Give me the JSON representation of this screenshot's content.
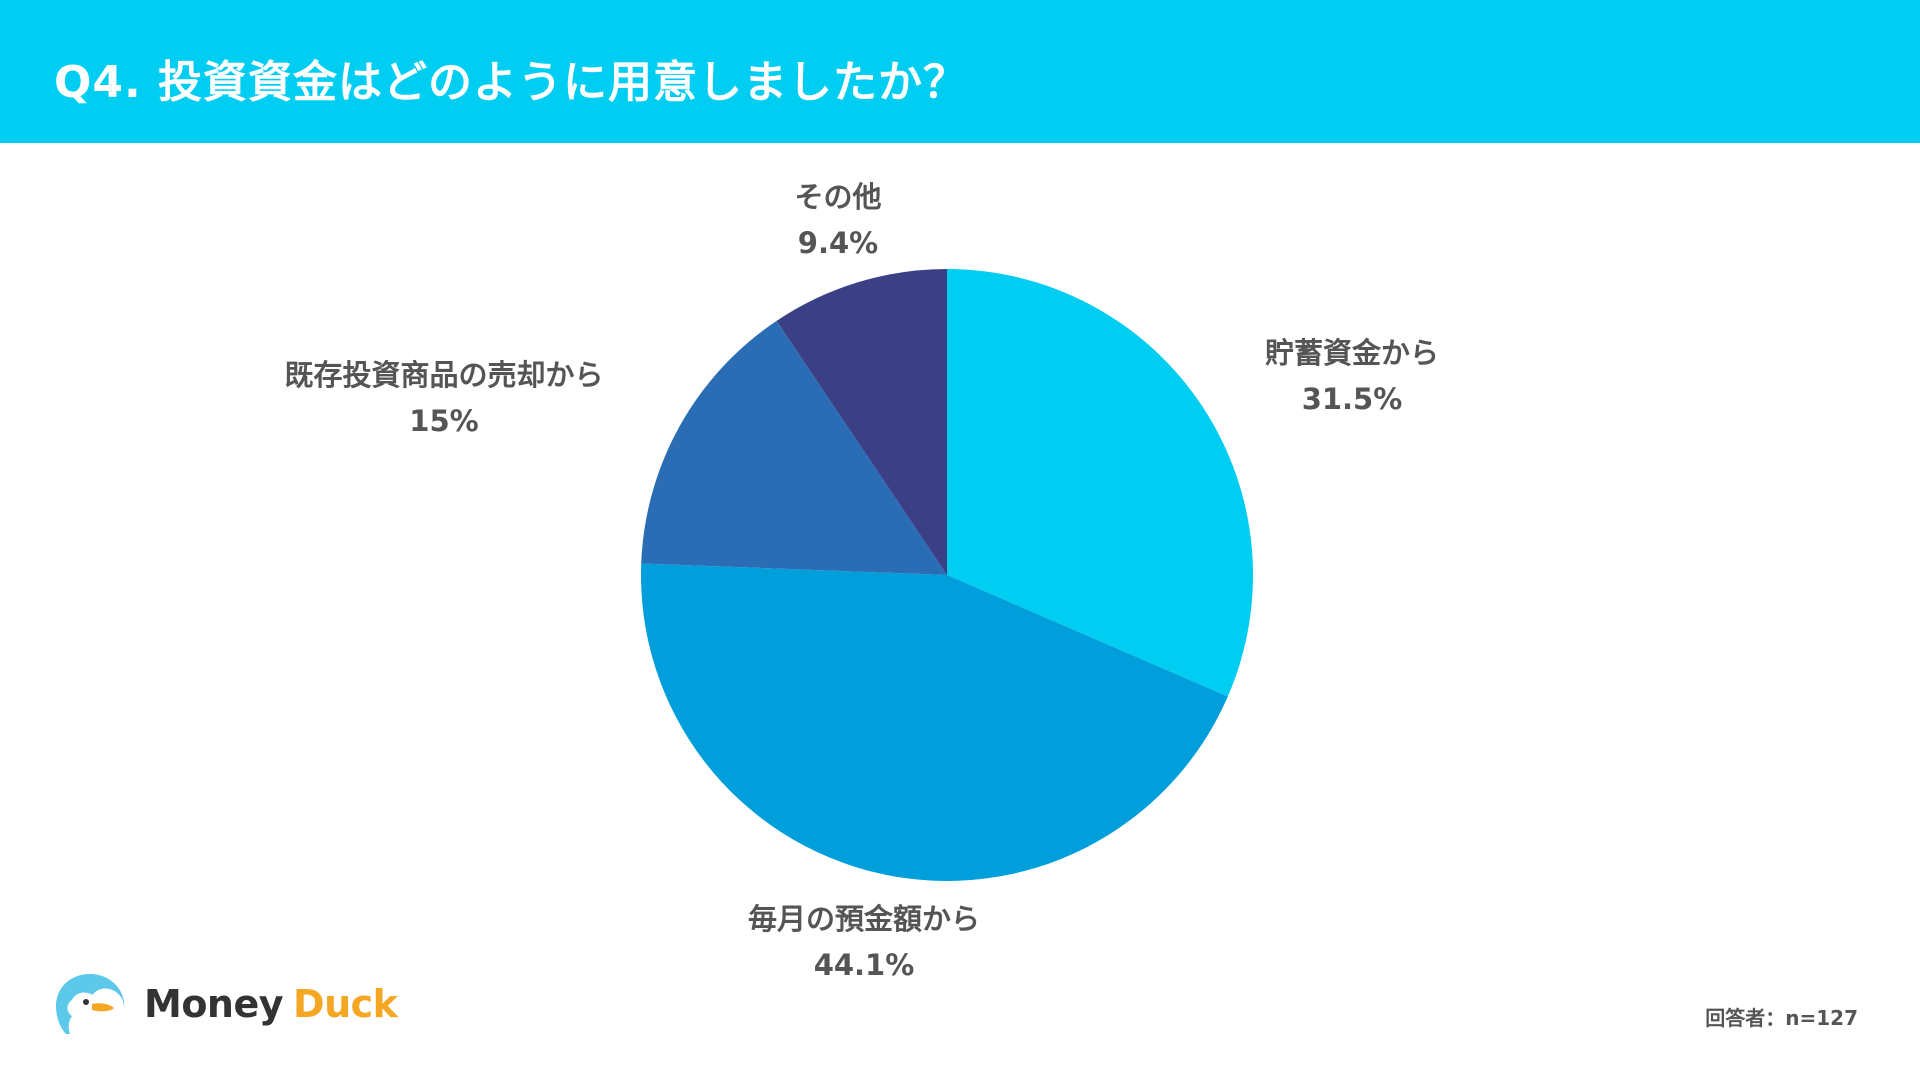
{
  "header": {
    "title": "Q4. 投資資金はどのように用意しましたか？"
  },
  "chart_data": {
    "type": "pie",
    "categories": [
      "貯蓄資金から",
      "毎月の預金額から",
      "既存投資商品の売却から",
      "その他"
    ],
    "values": [
      31.5,
      44.1,
      15,
      9.4
    ],
    "value_labels": [
      "31.5%",
      "44.1%",
      "15%",
      "9.4%"
    ],
    "colors": [
      "#00cdf2",
      "#009fdc",
      "#2a6db5",
      "#3b4086"
    ],
    "start_angle": "12 o'clock",
    "direction": "clockwise",
    "labels_placement": "outside"
  },
  "footer": {
    "logo_word1": "Money",
    "logo_word2": "Duck",
    "respondents": "回答者：n=127"
  }
}
